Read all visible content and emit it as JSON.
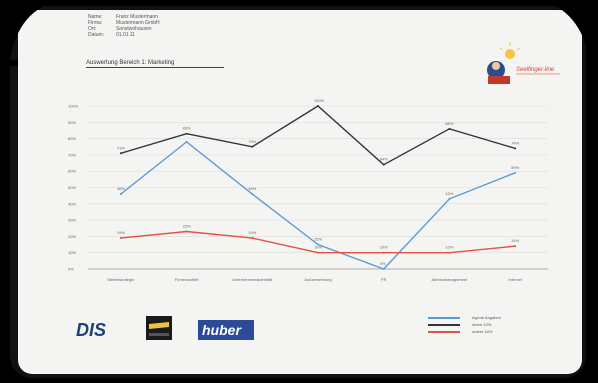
{
  "info": {
    "rows": [
      {
        "key": "Name:",
        "value": "Franz Mustermann"
      },
      {
        "key": "Firma:",
        "value": "Mustermann GmbH"
      },
      {
        "key": "Ort:",
        "value": "Sonstwohausen"
      },
      {
        "key": "Datum:",
        "value": "01.01.11"
      }
    ]
  },
  "subtitle": "Auswertung Bereich 1: Marketing",
  "logo_text": "Seelfinger-line",
  "colors": {
    "blue": "#5b9bd5",
    "dark": "#333333",
    "red": "#e0523f",
    "grid": "#dcdcdc"
  },
  "chart_data": {
    "type": "line",
    "categories": [
      "Werbestrategie",
      "Firmenauftritt",
      "Unternehmensidentität",
      "Außenwerbung",
      "PR",
      "Adressmanagement",
      "Internet"
    ],
    "ylim": [
      0,
      100
    ],
    "yticks": [
      "0%",
      "10%",
      "20%",
      "30%",
      "40%",
      "50%",
      "60%",
      "70%",
      "80%",
      "90%",
      "100%"
    ],
    "series": [
      {
        "name": "eigene Angaben",
        "color": "#5b9bd5",
        "values": [
          46,
          78,
          46,
          15,
          0,
          43,
          59
        ],
        "labels": [
          "46%",
          "",
          "46%",
          "15%",
          "0%",
          "43%",
          "59%"
        ]
      },
      {
        "name": "obere 10%",
        "color": "#333333",
        "values": [
          71,
          83,
          75,
          100,
          64,
          86,
          74
        ],
        "labels": [
          "71%",
          "83%",
          "75%",
          "100%",
          "64%",
          "86%",
          "74%"
        ]
      },
      {
        "name": "untere 10%",
        "color": "#e0523f",
        "values": [
          19,
          23,
          19,
          10,
          10,
          10,
          14
        ],
        "labels": [
          "19%",
          "23%",
          "19%",
          "10%",
          "10%",
          "10%",
          "14%"
        ]
      }
    ]
  },
  "footer": {
    "dis": "DIS",
    "huber": "huber"
  }
}
